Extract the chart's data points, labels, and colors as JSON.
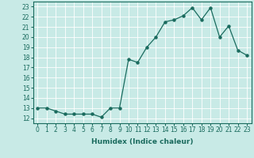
{
  "x": [
    0,
    1,
    2,
    3,
    4,
    5,
    6,
    7,
    8,
    9,
    10,
    11,
    12,
    13,
    14,
    15,
    16,
    17,
    18,
    19,
    20,
    21,
    22,
    23
  ],
  "y": [
    13,
    13,
    12.7,
    12.4,
    12.4,
    12.4,
    12.4,
    12.1,
    13,
    13,
    17.8,
    17.5,
    19,
    20,
    21.5,
    21.7,
    22.1,
    22.9,
    21.7,
    22.9,
    20,
    21.1,
    18.7,
    18.2
  ],
  "xlabel": "Humidex (Indice chaleur)",
  "xlim": [
    -0.5,
    23.5
  ],
  "ylim": [
    11.5,
    23.5
  ],
  "yticks": [
    12,
    13,
    14,
    15,
    16,
    17,
    18,
    19,
    20,
    21,
    22,
    23
  ],
  "xticks": [
    0,
    1,
    2,
    3,
    4,
    5,
    6,
    7,
    8,
    9,
    10,
    11,
    12,
    13,
    14,
    15,
    16,
    17,
    18,
    19,
    20,
    21,
    22,
    23
  ],
  "line_color": "#1a6b5e",
  "bg_color": "#c8eae6",
  "grid_color": "#ffffff",
  "tick_fontsize": 5.5,
  "label_fontsize": 6.5
}
